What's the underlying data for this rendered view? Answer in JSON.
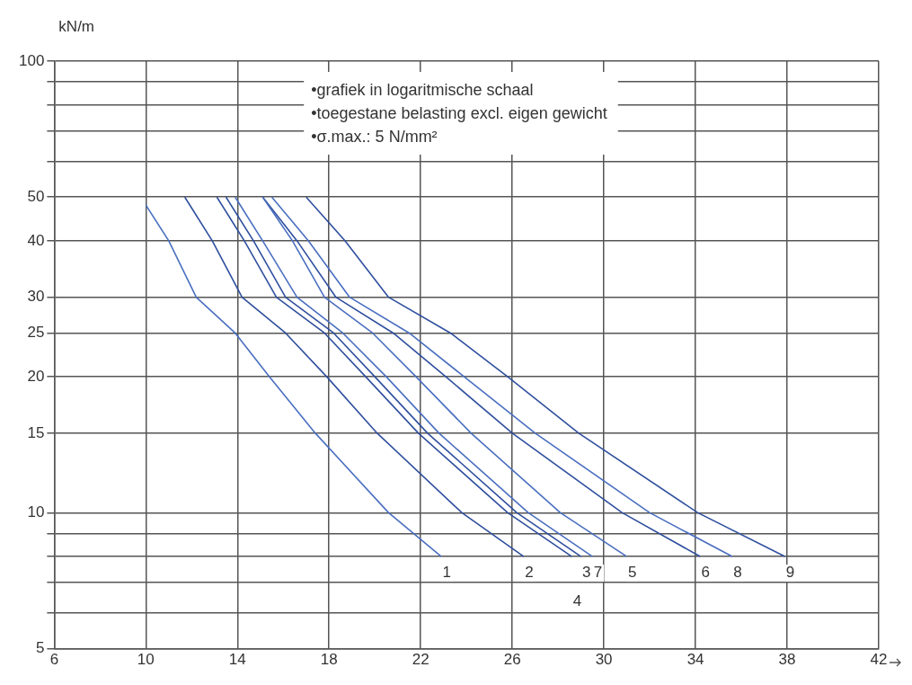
{
  "chart_data": {
    "type": "line",
    "ylabel": "kN/m",
    "log": "y",
    "grid": true,
    "legend": false,
    "marker": "none",
    "line_style": "solid",
    "xlim": [
      6,
      42
    ],
    "xticks": [
      6,
      10,
      14,
      18,
      22,
      26,
      30,
      34,
      38,
      42
    ],
    "ylim": [
      5,
      100
    ],
    "yticks": [
      5,
      {
        "value": 6,
        "label": null
      },
      {
        "value": 7,
        "label": null
      },
      {
        "value": 8,
        "label": null
      },
      {
        "value": 9,
        "label": null
      },
      10,
      15,
      20,
      25,
      30,
      40,
      50,
      {
        "value": 60,
        "label": null
      },
      {
        "value": 70,
        "label": null
      },
      {
        "value": 80,
        "label": null
      },
      {
        "value": 90,
        "label": null
      },
      100
    ],
    "annotations": [
      "•grafiek in logaritmische schaal",
      "•toegestane belasting excl. eigen gewicht",
      "•σ.max.: 5 N/mm²"
    ],
    "series": [
      {
        "name": "1",
        "color": "#4a6fc0",
        "x": [
          10,
          11.0,
          12.2,
          13.9,
          15.4,
          17.4,
          20.6,
          22.9
        ],
        "values": [
          48,
          40,
          30,
          25,
          20,
          15,
          10,
          8
        ]
      },
      {
        "name": "2",
        "color": "#2f4f9e",
        "x": [
          11.7,
          12.9,
          14.2,
          16.1,
          17.9,
          20.1,
          23.8,
          26.5
        ],
        "values": [
          50,
          40,
          30,
          25,
          20,
          15,
          10,
          8
        ]
      },
      {
        "name": "3",
        "color": "#2f4f9e",
        "x": [
          13.5,
          14.7,
          16.1,
          18.2,
          20.0,
          22.3,
          26.2,
          29.0
        ],
        "values": [
          50,
          40,
          30,
          25,
          20,
          15,
          10,
          8
        ]
      },
      {
        "name": "7",
        "color": "#4a6fc0",
        "x": [
          13.9,
          15.1,
          16.6,
          18.6,
          20.5,
          22.8,
          26.7,
          29.5
        ],
        "values": [
          50,
          40,
          30,
          25,
          20,
          15,
          10,
          8
        ]
      },
      {
        "name": "5",
        "color": "#4a6fc0",
        "x": [
          15.1,
          16.4,
          17.8,
          19.9,
          21.8,
          24.2,
          28.1,
          31.0
        ],
        "values": [
          50,
          40,
          30,
          25,
          20,
          15,
          10,
          8
        ]
      },
      {
        "name": "6",
        "color": "#2f4f9e",
        "x": [
          15.1,
          16.6,
          18.3,
          20.8,
          23.1,
          26.0,
          30.8,
          34.2
        ],
        "values": [
          50,
          40,
          30,
          25,
          20,
          15,
          10,
          8
        ]
      },
      {
        "name": "8",
        "color": "#4a6fc0",
        "x": [
          15.5,
          17.1,
          18.9,
          21.5,
          23.9,
          27.0,
          32.0,
          35.6
        ],
        "values": [
          50,
          40,
          30,
          25,
          20,
          15,
          10,
          8
        ]
      },
      {
        "name": "9",
        "color": "#2f4f9e",
        "x": [
          17.0,
          18.7,
          20.6,
          23.3,
          25.8,
          28.9,
          34.1,
          37.9
        ],
        "values": [
          50,
          40,
          30,
          25,
          20,
          15,
          10,
          8
        ]
      },
      {
        "name": "4",
        "color": "#2f4f9e",
        "x": [
          13.1,
          14.3,
          15.7,
          17.8,
          19.6,
          21.9,
          25.8,
          28.6
        ],
        "values": [
          50,
          40,
          30,
          25,
          20,
          15,
          10,
          8
        ]
      }
    ]
  }
}
